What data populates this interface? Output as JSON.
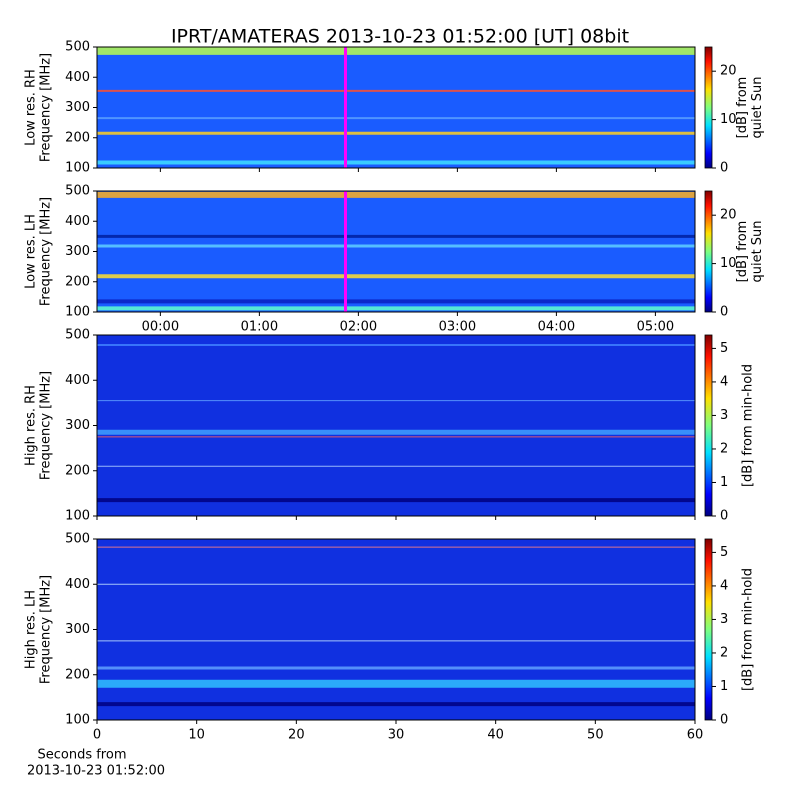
{
  "title": "IPRT/AMATERAS 2013-10-23 01:52:00 [UT]   08bit",
  "chart_data": [
    {
      "type": "heatmap",
      "ylabel": [
        "Low res. RH",
        "Frequency [MHz]"
      ],
      "ylim": [
        100,
        500
      ],
      "yticks": [
        100,
        200,
        300,
        400,
        500
      ],
      "xlim": [
        -0.64,
        5.4
      ],
      "xticks": [
        0,
        1,
        2,
        3,
        4,
        5
      ],
      "xtick_labels": false,
      "base_color": "#1a5cff",
      "bands": [
        {
          "y": 487,
          "color": "#b8ff50",
          "width": 8
        },
        {
          "y": 355,
          "color": "#ff5030",
          "width": 2
        },
        {
          "y": 215,
          "color": "#ffd020",
          "width": 3
        },
        {
          "y": 118,
          "color": "#40e0ff",
          "width": 4
        },
        {
          "y": 265,
          "color": "#5aa0ff",
          "width": 2
        }
      ],
      "marker_x": 1.87,
      "marker_color": "#ff00ff",
      "colorbar": {
        "label": [
          "[dB] from",
          "quiet Sun"
        ],
        "lim": [
          0,
          25
        ],
        "ticks": [
          0,
          10,
          20
        ]
      },
      "colormap": "jet"
    },
    {
      "type": "heatmap",
      "ylabel": [
        "Low res. LH",
        "Frequency [MHz]"
      ],
      "ylim": [
        100,
        500
      ],
      "yticks": [
        100,
        200,
        300,
        400,
        500
      ],
      "xlim": [
        -0.64,
        5.4
      ],
      "xticks": [
        {
          "value": 0,
          "label": "00:00"
        },
        {
          "value": 1,
          "label": "01:00"
        },
        {
          "value": 2,
          "label": "02:00"
        },
        {
          "value": 3,
          "label": "03:00"
        },
        {
          "value": 4,
          "label": "04:00"
        },
        {
          "value": 5,
          "label": "05:00"
        }
      ],
      "xtick_labels": true,
      "base_color": "#1a5cff",
      "bands": [
        {
          "y": 487,
          "color": "#ffb020",
          "width": 6
        },
        {
          "y": 350,
          "color": "#0020a0",
          "width": 3
        },
        {
          "y": 318,
          "color": "#60d0ff",
          "width": 3
        },
        {
          "y": 218,
          "color": "#ffe030",
          "width": 4
        },
        {
          "y": 135,
          "color": "#0a20c0",
          "width": 4
        },
        {
          "y": 112,
          "color": "#60ffd0",
          "width": 4
        }
      ],
      "marker_x": 1.87,
      "marker_color": "#ff00ff",
      "colorbar": {
        "label": [
          "[dB] from",
          "quiet Sun"
        ],
        "lim": [
          0,
          25
        ],
        "ticks": [
          0,
          10,
          20
        ]
      },
      "colormap": "jet"
    },
    {
      "type": "heatmap",
      "ylabel": [
        "High res. RH",
        "Frequency [MHz]"
      ],
      "ylim": [
        100,
        500
      ],
      "yticks": [
        100,
        200,
        300,
        400,
        500
      ],
      "xlim": [
        0,
        60
      ],
      "xticks": [
        0,
        10,
        20,
        30,
        40,
        50,
        60
      ],
      "xtick_labels": false,
      "base_color": "#1030e0",
      "bands": [
        {
          "y": 478,
          "color": "#4080ff",
          "width": 2
        },
        {
          "y": 285,
          "color": "#40a0ff",
          "width": 5
        },
        {
          "y": 275,
          "color": "#ff6060",
          "width": 1
        },
        {
          "y": 210,
          "color": "#b0d0ff",
          "width": 1
        },
        {
          "y": 355,
          "color": "#60a0ff",
          "width": 1
        },
        {
          "y": 135,
          "color": "#000080",
          "width": 4
        }
      ],
      "colorbar": {
        "label": [
          "[dB] from min-hold"
        ],
        "lim": [
          0,
          5.4
        ],
        "ticks": [
          0,
          1,
          2,
          3,
          4,
          5
        ]
      },
      "colormap": "jet"
    },
    {
      "type": "heatmap",
      "ylabel": [
        "High res. LH",
        "Frequency [MHz]"
      ],
      "ylim": [
        100,
        500
      ],
      "yticks": [
        100,
        200,
        300,
        400,
        500
      ],
      "xlim": [
        0,
        60
      ],
      "xticks": [
        0,
        10,
        20,
        30,
        40,
        50,
        60
      ],
      "xtick_labels": true,
      "xlabel": [
        "Seconds from",
        "2013-10-23 01:52:00"
      ],
      "base_color": "#1030e0",
      "bands": [
        {
          "y": 482,
          "color": "#ff8080",
          "width": 1
        },
        {
          "y": 400,
          "color": "#c0e0ff",
          "width": 1
        },
        {
          "y": 275,
          "color": "#c0e0ff",
          "width": 1
        },
        {
          "y": 215,
          "color": "#60a0ff",
          "width": 3
        },
        {
          "y": 180,
          "color": "#30c0ff",
          "width": 8
        },
        {
          "y": 135,
          "color": "#000080",
          "width": 4
        }
      ],
      "colorbar": {
        "label": [
          "[dB] from min-hold"
        ],
        "lim": [
          0,
          5.4
        ],
        "ticks": [
          0,
          1,
          2,
          3,
          4,
          5
        ]
      },
      "colormap": "jet"
    }
  ]
}
